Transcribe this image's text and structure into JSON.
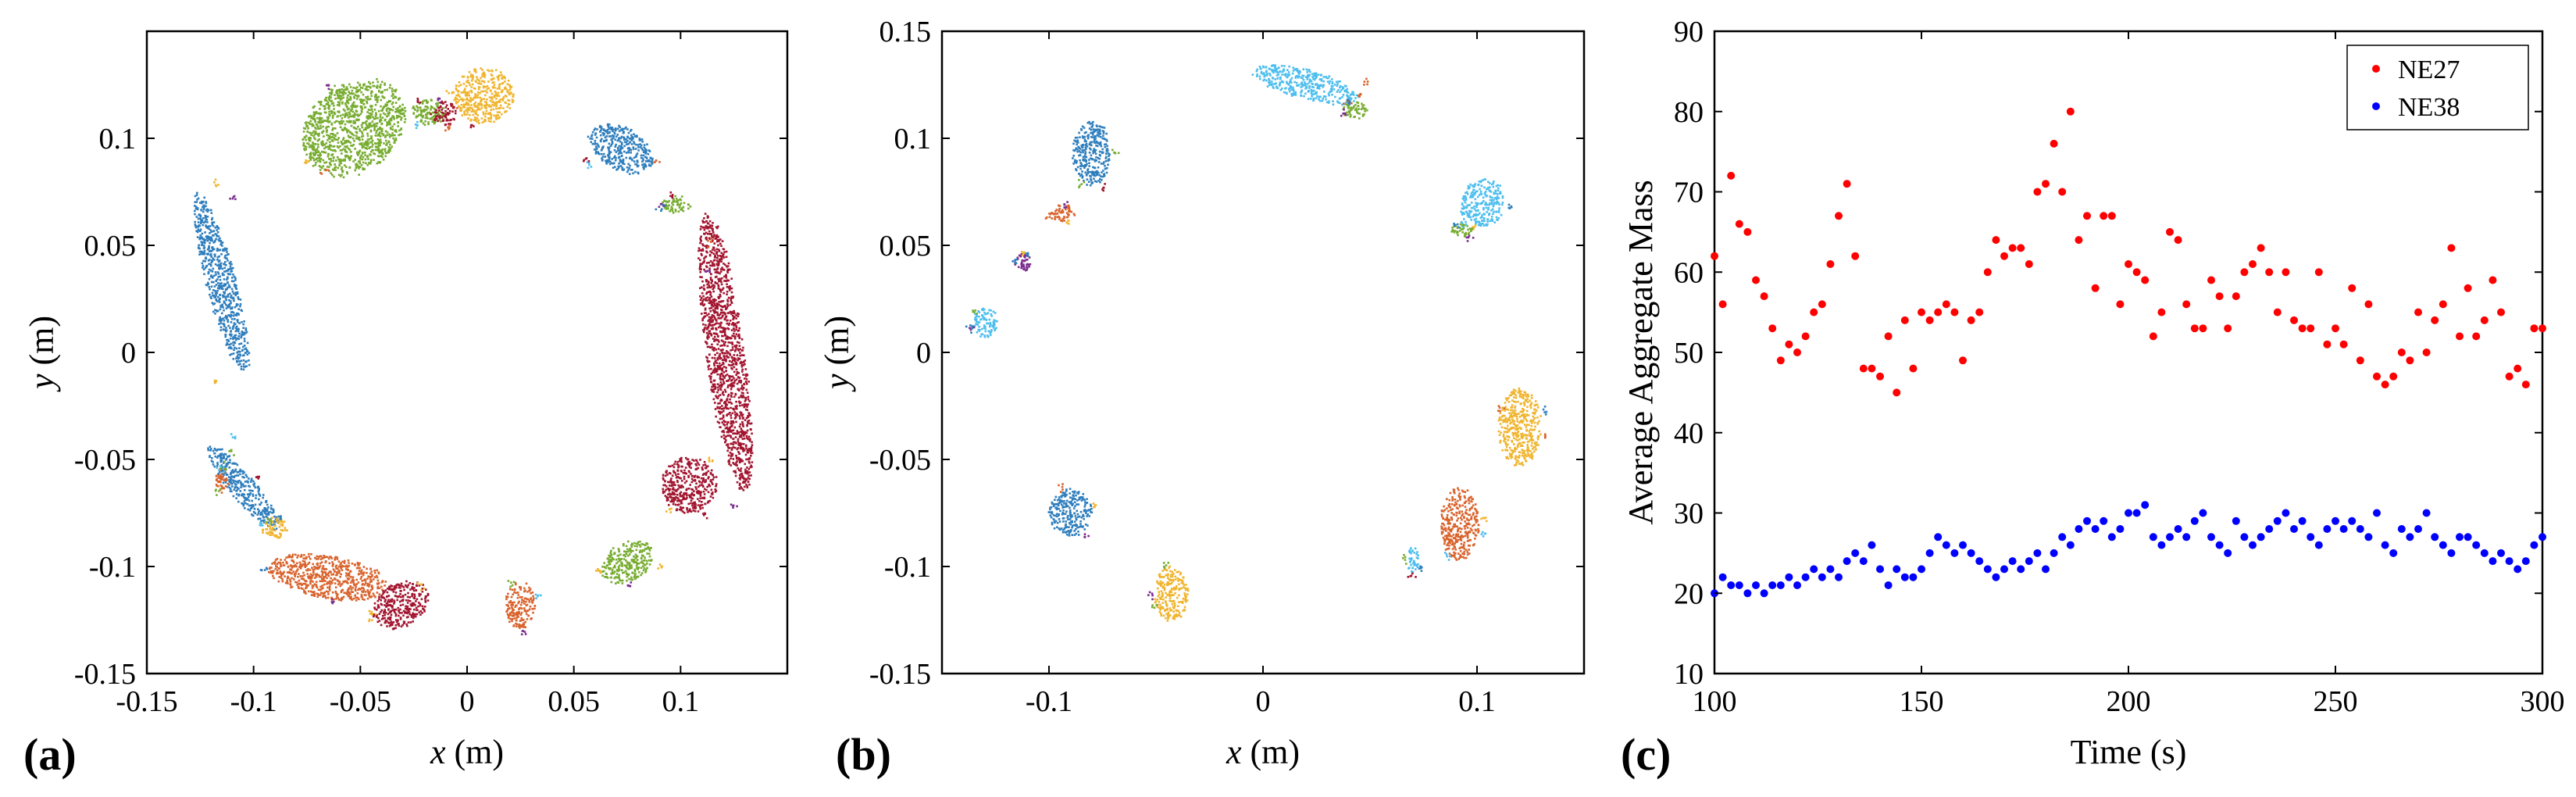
{
  "panels": [
    {
      "label": "(a)",
      "xlabel_var": "x",
      "xlabel_unit": " (m)",
      "ylabel_var": "y",
      "ylabel_unit": " (m)"
    },
    {
      "label": "(b)",
      "xlabel_var": "x",
      "xlabel_unit": " (m)",
      "ylabel_var": "y",
      "ylabel_unit": " (m)"
    },
    {
      "label": "(c)",
      "xlabel": "Time (s)",
      "ylabel": "Average Aggregate Mass"
    }
  ],
  "cluster_colors": {
    "blue": "#2e7ebd",
    "orange": "#d9632c",
    "yellow": "#f0b52e",
    "purple": "#7b2c8e",
    "green": "#77ac30",
    "cyan": "#4dbeee",
    "crimson": "#a2142f"
  },
  "chart_data": [
    {
      "type": "scatter",
      "title": "",
      "xlabel": "x (m)",
      "ylabel": "y (m)",
      "xlim": [
        -0.15,
        0.15
      ],
      "ylim": [
        -0.15,
        0.15
      ],
      "xticks": [
        -0.15,
        -0.1,
        -0.05,
        0,
        0.05,
        0.1
      ],
      "xtick_labels": [
        "-0.15",
        "-0.1",
        "-0.05",
        "0",
        "0.05",
        "0.1"
      ],
      "yticks": [
        -0.15,
        -0.1,
        -0.05,
        0,
        0.05,
        0.1
      ],
      "ytick_labels": [
        "-0.15",
        "-0.1",
        "-0.05",
        "0",
        "0.05",
        "0.1"
      ],
      "clusters": [
        {
          "name": "green-top",
          "color": "green",
          "cx": -0.053,
          "cy": 0.105,
          "rx": 0.026,
          "ry": 0.02,
          "angle": 35
        },
        {
          "name": "green-small",
          "color": "green",
          "cx": -0.018,
          "cy": 0.112,
          "rx": 0.008,
          "ry": 0.006,
          "angle": 0
        },
        {
          "name": "yellow-top",
          "color": "yellow",
          "cx": 0.008,
          "cy": 0.12,
          "rx": 0.014,
          "ry": 0.013,
          "angle": 0
        },
        {
          "name": "crimson-small",
          "color": "crimson",
          "cx": -0.01,
          "cy": 0.112,
          "rx": 0.005,
          "ry": 0.006,
          "angle": 0
        },
        {
          "name": "blue-topright",
          "color": "blue",
          "cx": 0.072,
          "cy": 0.095,
          "rx": 0.016,
          "ry": 0.01,
          "angle": -30
        },
        {
          "name": "green-right",
          "color": "green",
          "cx": 0.098,
          "cy": 0.069,
          "rx": 0.007,
          "ry": 0.004,
          "angle": 0
        },
        {
          "name": "crimson-right",
          "color": "crimson",
          "cx": 0.121,
          "cy": 0.0,
          "rx": 0.009,
          "ry": 0.065,
          "angle": 8
        },
        {
          "name": "crimson-right-low",
          "color": "crimson",
          "cx": 0.104,
          "cy": -0.062,
          "rx": 0.013,
          "ry": 0.013,
          "angle": 0
        },
        {
          "name": "blue-left",
          "color": "blue",
          "cx": -0.115,
          "cy": 0.032,
          "rx": 0.007,
          "ry": 0.043,
          "angle": 15
        },
        {
          "name": "blue-lowerleft",
          "color": "blue",
          "cx": -0.105,
          "cy": -0.063,
          "rx": 0.006,
          "ry": 0.025,
          "angle": 40
        },
        {
          "name": "orange-small-left",
          "color": "orange",
          "cx": -0.115,
          "cy": -0.06,
          "rx": 0.003,
          "ry": 0.006,
          "angle": 0
        },
        {
          "name": "yellow-small-bl",
          "color": "yellow",
          "cx": -0.09,
          "cy": -0.082,
          "rx": 0.006,
          "ry": 0.005,
          "angle": 0
        },
        {
          "name": "orange-bottom",
          "color": "orange",
          "cx": -0.065,
          "cy": -0.105,
          "rx": 0.028,
          "ry": 0.01,
          "angle": -10
        },
        {
          "name": "crimson-bottom",
          "color": "crimson",
          "cx": -0.031,
          "cy": -0.118,
          "rx": 0.014,
          "ry": 0.01,
          "angle": 30
        },
        {
          "name": "orange-bottom-mid",
          "color": "orange",
          "cx": 0.025,
          "cy": -0.118,
          "rx": 0.007,
          "ry": 0.011,
          "angle": 0
        },
        {
          "name": "green-bottom-right",
          "color": "green",
          "cx": 0.075,
          "cy": -0.098,
          "rx": 0.013,
          "ry": 0.009,
          "angle": 30
        }
      ]
    },
    {
      "type": "scatter",
      "title": "",
      "xlabel": "x (m)",
      "ylabel": "y (m)",
      "xlim": [
        -0.15,
        0.15
      ],
      "ylim": [
        -0.15,
        0.15
      ],
      "xticks": [
        -0.1,
        0,
        0.1
      ],
      "xtick_labels": [
        "-0.1",
        "0",
        "0.1"
      ],
      "yticks": [
        -0.15,
        -0.1,
        -0.05,
        0,
        0.05,
        0.1,
        0.15
      ],
      "ytick_labels": [
        "-0.15",
        "-0.1",
        "-0.05",
        "0",
        "0.05",
        "0.1",
        "0.15"
      ],
      "clusters": [
        {
          "name": "cyan-top",
          "color": "cyan",
          "cx": 0.02,
          "cy": 0.125,
          "rx": 0.025,
          "ry": 0.007,
          "angle": -15
        },
        {
          "name": "green-top-small",
          "color": "green",
          "cx": 0.043,
          "cy": 0.113,
          "rx": 0.006,
          "ry": 0.004,
          "angle": 0
        },
        {
          "name": "blue-topleft",
          "color": "blue",
          "cx": -0.08,
          "cy": 0.093,
          "rx": 0.009,
          "ry": 0.015,
          "angle": 0
        },
        {
          "name": "orange-left",
          "color": "orange",
          "cx": -0.094,
          "cy": 0.065,
          "rx": 0.006,
          "ry": 0.004,
          "angle": 0
        },
        {
          "name": "purple-left",
          "color": "purple",
          "cx": -0.112,
          "cy": 0.042,
          "rx": 0.004,
          "ry": 0.004,
          "angle": 0
        },
        {
          "name": "cyan-left",
          "color": "cyan",
          "cx": -0.13,
          "cy": 0.014,
          "rx": 0.006,
          "ry": 0.007,
          "angle": 0
        },
        {
          "name": "cyan-right",
          "color": "cyan",
          "cx": 0.103,
          "cy": 0.07,
          "rx": 0.01,
          "ry": 0.011,
          "angle": 0
        },
        {
          "name": "green-right-small",
          "color": "green",
          "cx": 0.093,
          "cy": 0.057,
          "rx": 0.005,
          "ry": 0.003,
          "angle": 0
        },
        {
          "name": "yellow-right",
          "color": "yellow",
          "cx": 0.12,
          "cy": -0.035,
          "rx": 0.01,
          "ry": 0.018,
          "angle": 0
        },
        {
          "name": "orange-right",
          "color": "orange",
          "cx": 0.092,
          "cy": -0.08,
          "rx": 0.009,
          "ry": 0.017,
          "angle": 0
        },
        {
          "name": "cyan-lower-small",
          "color": "cyan",
          "cx": 0.07,
          "cy": -0.097,
          "rx": 0.003,
          "ry": 0.006,
          "angle": 0
        },
        {
          "name": "blue-lowerleft",
          "color": "blue",
          "cx": -0.09,
          "cy": -0.075,
          "rx": 0.01,
          "ry": 0.011,
          "angle": 0
        },
        {
          "name": "yellow-bottom",
          "color": "yellow",
          "cx": -0.043,
          "cy": -0.113,
          "rx": 0.008,
          "ry": 0.013,
          "angle": 0
        }
      ]
    },
    {
      "type": "scatter",
      "title": "",
      "xlabel": "Time (s)",
      "ylabel": "Average Aggregate Mass",
      "xlim": [
        100,
        300
      ],
      "ylim": [
        10,
        90
      ],
      "xticks": [
        100,
        150,
        200,
        250,
        300
      ],
      "xtick_labels": [
        "100",
        "150",
        "200",
        "250",
        "300"
      ],
      "yticks": [
        10,
        20,
        30,
        40,
        50,
        60,
        70,
        80,
        90
      ],
      "ytick_labels": [
        "10",
        "20",
        "30",
        "40",
        "50",
        "60",
        "70",
        "80",
        "90"
      ],
      "legend_position": "top-right",
      "series": [
        {
          "name": "NE27",
          "color": "#ff0000",
          "x": [
            100,
            102,
            104,
            106,
            108,
            110,
            112,
            114,
            116,
            118,
            120,
            122,
            124,
            126,
            128,
            130,
            132,
            134,
            136,
            138,
            140,
            142,
            144,
            146,
            148,
            150,
            152,
            154,
            156,
            158,
            160,
            162,
            164,
            166,
            168,
            170,
            172,
            174,
            176,
            178,
            180,
            182,
            184,
            186,
            188,
            190,
            192,
            194,
            196,
            198,
            200,
            202,
            204,
            206,
            208,
            210,
            212,
            214,
            216,
            218,
            220,
            222,
            224,
            226,
            228,
            230,
            232,
            234,
            236,
            238,
            240,
            242,
            244,
            246,
            248,
            250,
            252,
            254,
            256,
            258,
            260,
            262,
            264,
            266,
            268,
            270,
            272,
            274,
            276,
            278,
            280,
            282,
            284,
            286,
            288,
            290,
            292,
            294,
            296,
            298,
            300
          ],
          "y": [
            62,
            56,
            72,
            66,
            65,
            59,
            57,
            53,
            49,
            51,
            50,
            52,
            55,
            56,
            61,
            67,
            71,
            62,
            48,
            48,
            47,
            52,
            45,
            54,
            48,
            55,
            54,
            55,
            56,
            55,
            49,
            54,
            55,
            60,
            64,
            62,
            63,
            63,
            61,
            70,
            71,
            76,
            70,
            80,
            64,
            67,
            58,
            67,
            67,
            56,
            61,
            60,
            59,
            52,
            55,
            65,
            64,
            56,
            53,
            53,
            59,
            57,
            53,
            57,
            60,
            61,
            63,
            60,
            55,
            60,
            54,
            53,
            53,
            60,
            51,
            53,
            51,
            58,
            49,
            56,
            47,
            46,
            47,
            50,
            49,
            55,
            50,
            54,
            56,
            63,
            52,
            58,
            52,
            54,
            59,
            55,
            47,
            48,
            46,
            53,
            53
          ]
        },
        {
          "name": "NE38",
          "color": "#0000ff",
          "x": [
            100,
            102,
            104,
            106,
            108,
            110,
            112,
            114,
            116,
            118,
            120,
            122,
            124,
            126,
            128,
            130,
            132,
            134,
            136,
            138,
            140,
            142,
            144,
            146,
            148,
            150,
            152,
            154,
            156,
            158,
            160,
            162,
            164,
            166,
            168,
            170,
            172,
            174,
            176,
            178,
            180,
            182,
            184,
            186,
            188,
            190,
            192,
            194,
            196,
            198,
            200,
            202,
            204,
            206,
            208,
            210,
            212,
            214,
            216,
            218,
            220,
            222,
            224,
            226,
            228,
            230,
            232,
            234,
            236,
            238,
            240,
            242,
            244,
            246,
            248,
            250,
            252,
            254,
            256,
            258,
            260,
            262,
            264,
            266,
            268,
            270,
            272,
            274,
            276,
            278,
            280,
            282,
            284,
            286,
            288,
            290,
            292,
            294,
            296,
            298,
            300
          ],
          "y": [
            20,
            22,
            21,
            21,
            20,
            21,
            20,
            21,
            21,
            22,
            21,
            22,
            23,
            22,
            23,
            22,
            24,
            25,
            24,
            26,
            23,
            21,
            23,
            22,
            22,
            23,
            25,
            27,
            26,
            25,
            26,
            25,
            24,
            23,
            22,
            23,
            24,
            23,
            24,
            25,
            23,
            25,
            27,
            26,
            28,
            29,
            28,
            29,
            27,
            28,
            30,
            30,
            31,
            27,
            26,
            27,
            28,
            27,
            29,
            30,
            27,
            26,
            25,
            29,
            27,
            26,
            27,
            28,
            29,
            30,
            28,
            29,
            27,
            26,
            28,
            29,
            28,
            29,
            28,
            27,
            30,
            26,
            25,
            28,
            27,
            28,
            30,
            27,
            26,
            25,
            27,
            27,
            26,
            25,
            24,
            25,
            24,
            23,
            24,
            26,
            27
          ]
        }
      ]
    }
  ]
}
